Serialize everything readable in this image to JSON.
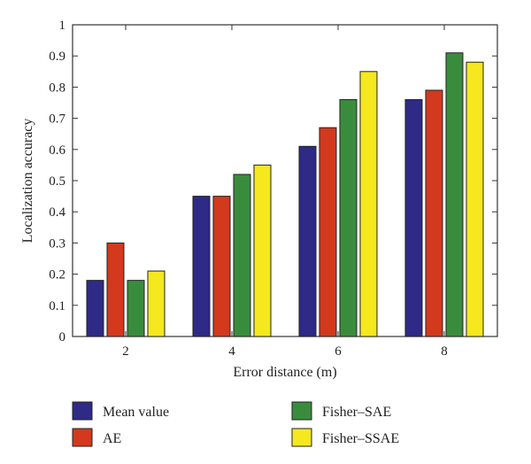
{
  "chart_data": {
    "type": "bar",
    "categories": [
      "2",
      "4",
      "6",
      "8"
    ],
    "series": [
      {
        "name": "Mean value",
        "values": [
          0.18,
          0.45,
          0.61,
          0.76
        ],
        "color": "#2e2a86"
      },
      {
        "name": "AE",
        "values": [
          0.3,
          0.45,
          0.67,
          0.79
        ],
        "color": "#d2391d"
      },
      {
        "name": "Fisher–SAE",
        "values": [
          0.18,
          0.52,
          0.76,
          0.91
        ],
        "color": "#3a8c3d"
      },
      {
        "name": "Fisher–SSAE",
        "values": [
          0.21,
          0.55,
          0.85,
          0.88
        ],
        "color": "#f5e81e"
      }
    ],
    "xlabel": "Error distance (m)",
    "ylabel": "Localization accuracy",
    "ylim": [
      0,
      1
    ],
    "yticks": [
      "0",
      "0.1",
      "0.2",
      "0.3",
      "0.4",
      "0.5",
      "0.6",
      "0.7",
      "0.8",
      "0.9",
      "1"
    ],
    "grid": false,
    "legend_position": "bottom"
  }
}
